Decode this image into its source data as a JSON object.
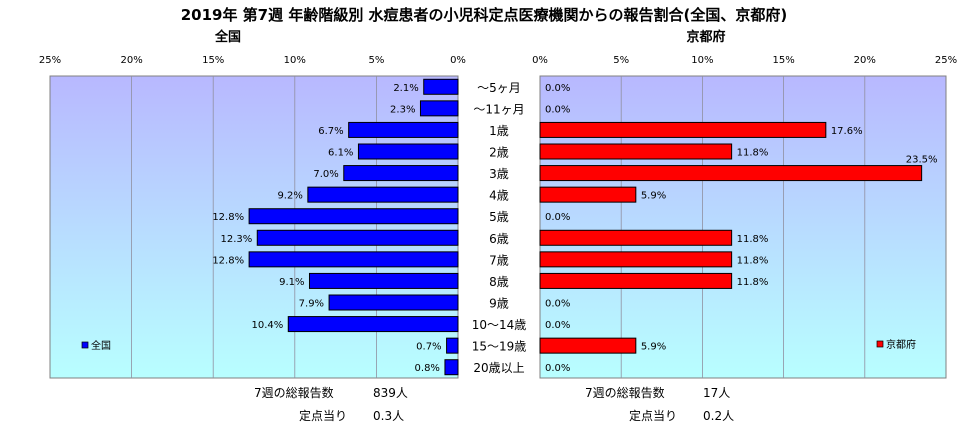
{
  "title": "2019年 第7週 年齢階級別 水痘患者の小児科定点医療機関からの報告割合(全国、京都府)",
  "categories": [
    "～5ヶ月",
    "～11ヶ月",
    "1歳",
    "2歳",
    "3歳",
    "4歳",
    "5歳",
    "6歳",
    "7歳",
    "8歳",
    "9歳",
    "10～14歳",
    "15～19歳",
    "20歳以上"
  ],
  "chart_data": [
    {
      "type": "bar",
      "title": "全国",
      "orientation": "horizontal-reversed",
      "x_ticks": [
        "25%",
        "20%",
        "15%",
        "10%",
        "5%",
        "0%"
      ],
      "xlim": [
        0,
        25
      ],
      "series": [
        {
          "name": "全国",
          "values": [
            2.1,
            2.3,
            6.7,
            6.1,
            7.0,
            9.2,
            12.8,
            12.3,
            12.8,
            9.1,
            7.9,
            10.4,
            0.7,
            0.8
          ]
        }
      ],
      "data_labels": [
        "2.1%",
        "2.3%",
        "6.7%",
        "6.1%",
        "7.0%",
        "9.2%",
        "12.8%",
        "12.3%",
        "12.8%",
        "9.1%",
        "7.9%",
        "10.4%",
        "0.7%",
        "0.8%"
      ],
      "color": "#0000ff",
      "legend": "bottom-left",
      "grid": true
    },
    {
      "type": "bar",
      "title": "京都府",
      "orientation": "horizontal",
      "x_ticks": [
        "0%",
        "5%",
        "10%",
        "15%",
        "20%",
        "25%"
      ],
      "xlim": [
        0,
        25
      ],
      "series": [
        {
          "name": "京都府",
          "values": [
            0.0,
            0.0,
            17.6,
            11.8,
            23.5,
            5.9,
            0.0,
            11.8,
            11.8,
            11.8,
            0.0,
            0.0,
            5.9,
            0.0
          ]
        }
      ],
      "data_labels": [
        "0.0%",
        "0.0%",
        "17.6%",
        "11.8%",
        "23.5%",
        "5.9%",
        "0.0%",
        "11.8%",
        "11.8%",
        "11.8%",
        "0.0%",
        "0.0%",
        "5.9%",
        "0.0%"
      ],
      "color": "#ff0000",
      "legend": "bottom-right",
      "grid": true
    }
  ],
  "footer": {
    "left": {
      "total_label": "7週の総報告数",
      "total_value": "839人",
      "per_label": "定点当り",
      "per_value": "0.3人"
    },
    "right": {
      "total_label": "7週の総報告数",
      "total_value": "17人",
      "per_label": "定点当り",
      "per_value": "0.2人"
    }
  },
  "colors": {
    "plot_top": "#b8b8ff",
    "plot_bottom": "#b8ffff",
    "nation_bar": "#0000ff",
    "kyoto_bar": "#ff0000"
  }
}
